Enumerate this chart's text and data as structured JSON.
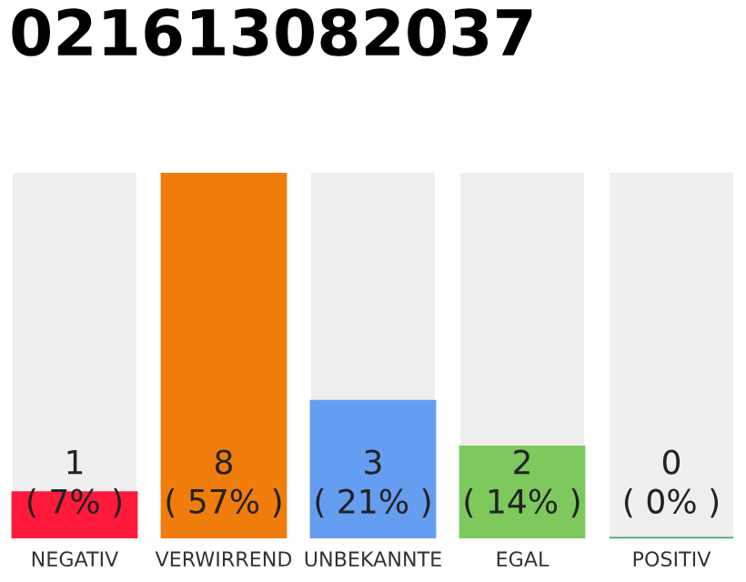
{
  "chart_data": {
    "type": "bar",
    "title": "021613082037",
    "categories": [
      "NEGATIV",
      "VERWIRREND",
      "UNBEKANNTE",
      "EGAL",
      "POSITIV"
    ],
    "values": [
      1,
      8,
      3,
      2,
      0
    ],
    "colors": [
      "#ff1a3c",
      "#f07c0c",
      "#659df0",
      "#7dc95e",
      "#2ca05a"
    ],
    "value_labels": [
      "1\n( 7% )",
      "8\n( 57% )",
      "3\n( 21% )",
      "2\n( 14% )",
      "0\n( 0% )"
    ],
    "grid": false,
    "legend": false
  }
}
